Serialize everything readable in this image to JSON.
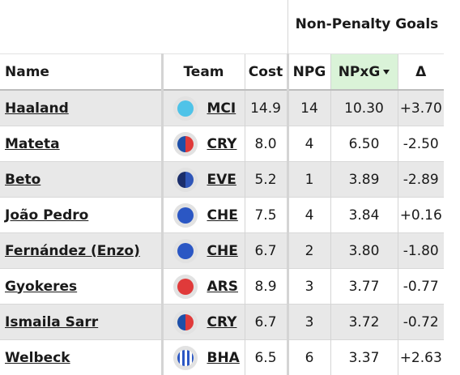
{
  "group_header": "Non-Penalty Goals",
  "columns": {
    "name": "Name",
    "team": "Team",
    "cost": "Cost",
    "npg": "NPG",
    "npxg": "NPxG",
    "delta": "Δ"
  },
  "sorted_column": "npxg",
  "rows": [
    {
      "name": "Haaland",
      "team": "MCI",
      "team_colors": [
        "#4fc3e8",
        "#4fc3e8"
      ],
      "cost": "14.9",
      "npg": "14",
      "npxg": "10.30",
      "delta": "+3.70"
    },
    {
      "name": "Mateta",
      "team": "CRY",
      "team_colors": [
        "#1d4fa8",
        "#e03a3a"
      ],
      "cost": "8.0",
      "npg": "4",
      "npxg": "6.50",
      "delta": "-2.50"
    },
    {
      "name": "Beto",
      "team": "EVE",
      "team_colors": [
        "#1b2e6b",
        "#2f56b8"
      ],
      "cost": "5.2",
      "npg": "1",
      "npxg": "3.89",
      "delta": "-2.89"
    },
    {
      "name": "João Pedro",
      "team": "CHE",
      "team_colors": [
        "#2b57c4",
        "#2b57c4"
      ],
      "cost": "7.5",
      "npg": "4",
      "npxg": "3.84",
      "delta": "+0.16"
    },
    {
      "name": "Fernández (Enzo)",
      "team": "CHE",
      "team_colors": [
        "#2b57c4",
        "#2b57c4"
      ],
      "cost": "6.7",
      "npg": "2",
      "npxg": "3.80",
      "delta": "-1.80"
    },
    {
      "name": "Gyokeres",
      "team": "ARS",
      "team_colors": [
        "#e03a3a",
        "#e03a3a"
      ],
      "cost": "8.9",
      "npg": "3",
      "npxg": "3.77",
      "delta": "-0.77"
    },
    {
      "name": "Ismaila Sarr",
      "team": "CRY",
      "team_colors": [
        "#1d4fa8",
        "#e03a3a"
      ],
      "cost": "6.7",
      "npg": "3",
      "npxg": "3.72",
      "delta": "-0.72"
    },
    {
      "name": "Welbeck",
      "team": "BHA",
      "team_colors": [
        "#2b57c4",
        "#ffffff"
      ],
      "cost": "6.5",
      "npg": "6",
      "npxg": "3.37",
      "delta": "+2.63"
    }
  ]
}
